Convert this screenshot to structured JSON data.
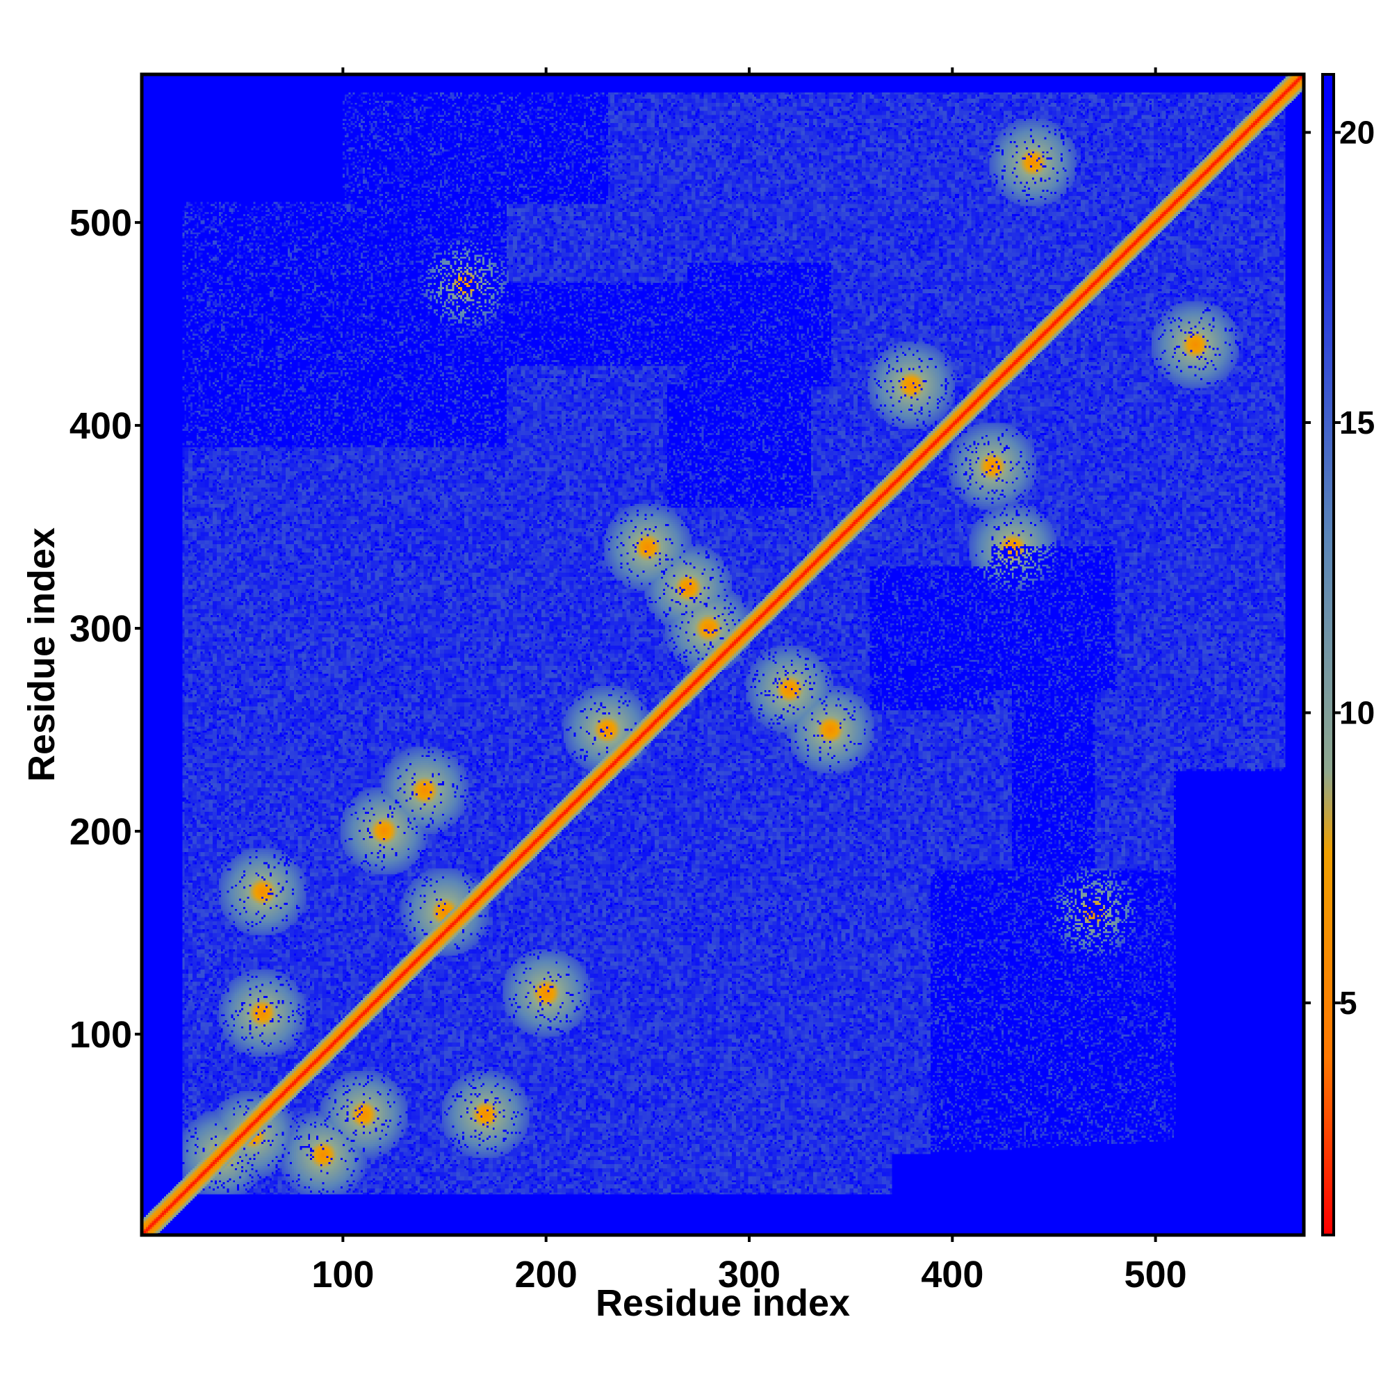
{
  "chart_data": {
    "type": "heatmap",
    "title": "",
    "xlabel": "Residue index",
    "ylabel": "Residue index",
    "xlim": [
      1,
      573
    ],
    "ylim": [
      1,
      573
    ],
    "x_ticks": [
      100,
      200,
      300,
      400,
      500
    ],
    "y_ticks": [
      100,
      200,
      300,
      400,
      500
    ],
    "x_tick_labels": [
      "100",
      "200",
      "300",
      "400",
      "500"
    ],
    "y_tick_labels": [
      "100",
      "200",
      "300",
      "400",
      "500"
    ],
    "top_ticks": [
      100,
      200,
      300,
      400,
      500
    ],
    "colorbar": {
      "range": [
        1,
        21
      ],
      "ticks": [
        5,
        10,
        15,
        20
      ],
      "tick_labels": [
        "5",
        "10",
        "15",
        "20"
      ],
      "right_ticks": [
        5,
        10,
        15,
        20
      ],
      "colors": [
        "#ff0000",
        "#ff7700",
        "#f0a000",
        "#8fa890",
        "#5b86b8",
        "#0000ff"
      ],
      "color_stops": [
        0,
        0.15,
        0.33,
        0.4,
        0.6,
        0.98
      ]
    },
    "background_value": 21,
    "grid": false,
    "legend": "colorbar-right",
    "description_of_values": "Pairwise distance map; diagonal ~0 (red), near contacts in orange/yellow, medium in steel blue, far/undefined in saturated blue",
    "features": {
      "diagonal": [
        [
          1,
          1
        ],
        [
          573,
          573
        ]
      ],
      "hot_spots": [
        [
          40,
          40
        ],
        [
          55,
          50
        ],
        [
          90,
          40
        ],
        [
          150,
          160
        ],
        [
          140,
          220
        ],
        [
          230,
          250
        ],
        [
          250,
          340
        ],
        [
          280,
          300
        ],
        [
          340,
          250
        ],
        [
          440,
          530
        ],
        [
          430,
          340
        ],
        [
          520,
          440
        ],
        [
          110,
          60
        ],
        [
          60,
          110
        ],
        [
          170,
          60
        ],
        [
          60,
          170
        ],
        [
          200,
          120
        ],
        [
          120,
          200
        ],
        [
          320,
          270
        ],
        [
          270,
          320
        ],
        [
          380,
          420
        ],
        [
          420,
          380
        ],
        [
          470,
          160
        ],
        [
          160,
          470
        ]
      ],
      "void_regions": [
        [
          [
            10,
            180
          ],
          [
            390,
            560
          ]
        ],
        [
          [
            390,
            560
          ],
          [
            10,
            180
          ]
        ],
        [
          [
            180,
            270
          ],
          [
            430,
            470
          ]
        ],
        [
          [
            430,
            470
          ],
          [
            180,
            270
          ]
        ],
        [
          [
            270,
            340
          ],
          [
            420,
            480
          ]
        ],
        [
          [
            420,
            480
          ],
          [
            270,
            340
          ]
        ],
        [
          [
            360,
            420
          ],
          [
            260,
            330
          ]
        ],
        [
          [
            260,
            330
          ],
          [
            360,
            420
          ]
        ],
        [
          [
            510,
            570
          ],
          [
            20,
            230
          ]
        ],
        [
          [
            20,
            230
          ],
          [
            510,
            570
          ]
        ]
      ]
    }
  }
}
